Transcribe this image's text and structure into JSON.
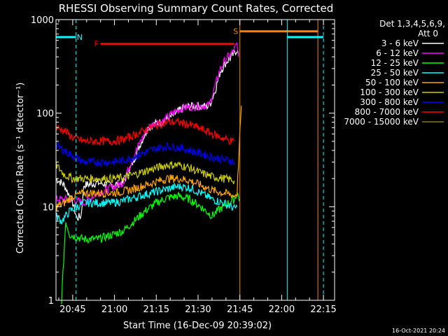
{
  "chart_data": {
    "type": "line",
    "title": "RHESSI Observing Summary Count Rates, Corrected",
    "xlabel": "Start Time (16-Dec-09 20:39:02)",
    "ylabel": "Corrected Count Rate (s⁻¹ detector⁻¹)",
    "x_unit": "minutes after 20:39:02",
    "xlim": [
      0,
      100
    ],
    "ylim": [
      1,
      1000
    ],
    "y_scale": "log",
    "x_ticks": [
      {
        "label": "20:45",
        "x": 6
      },
      {
        "label": "21:00",
        "x": 21
      },
      {
        "label": "21:15",
        "x": 36
      },
      {
        "label": "21:30",
        "x": 51
      },
      {
        "label": "21:45",
        "x": 66
      },
      {
        "label": "22:00",
        "x": 81
      },
      {
        "label": "22:15",
        "x": 96
      }
    ],
    "y_ticks": [
      {
        "label": "1",
        "y": 1
      },
      {
        "label": "10",
        "y": 10
      },
      {
        "label": "100",
        "y": 100
      },
      {
        "label": "1000",
        "y": 1000
      }
    ],
    "legend_title": "Det 1,3,4,5,6,9,",
    "legend_sub": "Att 0",
    "legend_position": "right, outside",
    "series": [
      {
        "name": "3 - 6 keV",
        "color": "#ffffff",
        "points": [
          [
            0,
            20
          ],
          [
            3,
            17
          ],
          [
            6,
            11
          ],
          [
            7.5,
            7.5
          ],
          [
            9,
            8
          ],
          [
            10,
            17
          ],
          [
            15,
            18
          ],
          [
            20,
            17
          ],
          [
            24,
            18
          ],
          [
            27,
            27
          ],
          [
            30,
            45
          ],
          [
            33,
            70
          ],
          [
            36,
            78
          ],
          [
            38,
            80
          ],
          [
            41,
            90
          ],
          [
            43,
            100
          ],
          [
            46,
            115
          ],
          [
            50,
            120
          ],
          [
            53,
            118
          ],
          [
            55,
            120
          ],
          [
            57,
            170
          ],
          [
            59,
            280
          ],
          [
            61,
            350
          ],
          [
            63,
            400
          ],
          [
            64,
            440
          ],
          [
            65,
            480
          ],
          [
            65.5,
            420
          ]
        ]
      },
      {
        "name": "6 - 12 keV",
        "color": "#ff00ff",
        "points": [
          [
            0,
            12
          ],
          [
            5,
            12
          ],
          [
            10,
            11
          ],
          [
            15,
            14
          ],
          [
            20,
            16
          ],
          [
            24,
            18
          ],
          [
            27,
            30
          ],
          [
            30,
            48
          ],
          [
            33,
            70
          ],
          [
            36,
            80
          ],
          [
            38,
            80
          ],
          [
            41,
            95
          ],
          [
            43,
            105
          ],
          [
            46,
            115
          ],
          [
            50,
            118
          ],
          [
            53,
            120
          ],
          [
            55,
            122
          ],
          [
            57,
            190
          ],
          [
            59,
            300
          ],
          [
            61,
            380
          ],
          [
            63,
            430
          ],
          [
            64,
            480
          ],
          [
            65,
            540
          ],
          [
            65.5,
            400
          ]
        ]
      },
      {
        "name": "12 - 25 keV",
        "color": "#00ff00",
        "points": [
          [
            2,
            1
          ],
          [
            3.5,
            7
          ],
          [
            5,
            5
          ],
          [
            10,
            4.5
          ],
          [
            15,
            4.5
          ],
          [
            20,
            5
          ],
          [
            24,
            5.5
          ],
          [
            28,
            7
          ],
          [
            32,
            9
          ],
          [
            36,
            11
          ],
          [
            40,
            12.5
          ],
          [
            44,
            13
          ],
          [
            48,
            12
          ],
          [
            52,
            10
          ],
          [
            56,
            8
          ],
          [
            58,
            9
          ],
          [
            60,
            10
          ],
          [
            62,
            11
          ],
          [
            64,
            12
          ],
          [
            65,
            14
          ],
          [
            66,
            12
          ]
        ]
      },
      {
        "name": "25 - 50 keV",
        "color": "#00ffff",
        "points": [
          [
            0,
            8
          ],
          [
            2,
            7
          ],
          [
            5,
            9
          ],
          [
            10,
            11
          ],
          [
            15,
            11
          ],
          [
            20,
            11
          ],
          [
            24,
            11.5
          ],
          [
            28,
            12.5
          ],
          [
            32,
            13.5
          ],
          [
            36,
            14.5
          ],
          [
            40,
            15.5
          ],
          [
            44,
            16.5
          ],
          [
            48,
            16
          ],
          [
            52,
            14
          ],
          [
            56,
            12
          ],
          [
            60,
            11
          ],
          [
            63,
            10
          ],
          [
            64,
            9.5
          ],
          [
            65,
            10
          ]
        ]
      },
      {
        "name": "50 - 100 keV",
        "color": "#ffa500",
        "points": [
          [
            0,
            10
          ],
          [
            3,
            11
          ],
          [
            6,
            13
          ],
          [
            10,
            14
          ],
          [
            15,
            14
          ],
          [
            20,
            14
          ],
          [
            24,
            14.5
          ],
          [
            28,
            15.5
          ],
          [
            32,
            17
          ],
          [
            36,
            18.5
          ],
          [
            40,
            20
          ],
          [
            44,
            20
          ],
          [
            48,
            19
          ],
          [
            52,
            17
          ],
          [
            56,
            15
          ],
          [
            60,
            14
          ],
          [
            63,
            13.5
          ],
          [
            64,
            13
          ],
          [
            65,
            14
          ],
          [
            66,
            60
          ],
          [
            66.5,
            120
          ]
        ]
      },
      {
        "name": "100 - 300 keV",
        "color": "#cccc00",
        "points": [
          [
            0,
            28
          ],
          [
            3,
            22
          ],
          [
            6,
            20
          ],
          [
            10,
            20
          ],
          [
            15,
            20
          ],
          [
            20,
            20
          ],
          [
            24,
            20.5
          ],
          [
            28,
            22
          ],
          [
            32,
            24
          ],
          [
            36,
            26
          ],
          [
            40,
            28
          ],
          [
            44,
            28
          ],
          [
            48,
            26
          ],
          [
            52,
            23
          ],
          [
            56,
            21
          ],
          [
            60,
            20
          ],
          [
            63,
            19.5
          ],
          [
            64,
            19
          ]
        ]
      },
      {
        "name": "300 - 800 keV",
        "color": "#0000ff",
        "points": [
          [
            0,
            45
          ],
          [
            3,
            40
          ],
          [
            6,
            35
          ],
          [
            10,
            30
          ],
          [
            15,
            30
          ],
          [
            20,
            30
          ],
          [
            24,
            31
          ],
          [
            28,
            34
          ],
          [
            32,
            38
          ],
          [
            36,
            42
          ],
          [
            40,
            44
          ],
          [
            44,
            43
          ],
          [
            48,
            40
          ],
          [
            52,
            37
          ],
          [
            56,
            34
          ],
          [
            60,
            32
          ],
          [
            63,
            31
          ],
          [
            64,
            30
          ]
        ]
      },
      {
        "name": "800 - 7000 keV",
        "color": "#ff0000",
        "points": [
          [
            0,
            70
          ],
          [
            3,
            65
          ],
          [
            6,
            55
          ],
          [
            10,
            50
          ],
          [
            15,
            50
          ],
          [
            20,
            50
          ],
          [
            24,
            52
          ],
          [
            28,
            58
          ],
          [
            32,
            66
          ],
          [
            36,
            74
          ],
          [
            40,
            80
          ],
          [
            44,
            80
          ],
          [
            48,
            75
          ],
          [
            52,
            68
          ],
          [
            56,
            60
          ],
          [
            60,
            54
          ],
          [
            63,
            50
          ],
          [
            64,
            50
          ]
        ]
      },
      {
        "name": "7000 - 15000 keV",
        "color": "#808000",
        "points": []
      }
    ],
    "annotations": [
      {
        "label": "N",
        "color": "#00ffff",
        "bar": [
          0,
          7.2
        ],
        "level": 650,
        "line_x": [
          7.2
        ],
        "line_style": "dashed",
        "label_x": 8.5
      },
      {
        "label": "F",
        "color": "#ff0000",
        "bar": [
          16,
          64
        ],
        "level": 550,
        "label_x": 14.5
      },
      {
        "label": "S",
        "color": "#ff8000",
        "bar": [
          66,
          94
        ],
        "level": 750,
        "line_x": [
          66,
          94
        ],
        "line_style": "solid",
        "label_x": 64.5
      },
      {
        "label": "",
        "color": "#00ffff",
        "bar": [
          83,
          96
        ],
        "level": 650,
        "line_x": [
          83
        ],
        "line_style": "solid"
      },
      {
        "label": "",
        "color": "#00ffff",
        "bar": [],
        "level": 650,
        "line_x": [
          96
        ],
        "line_style": "dashed"
      }
    ],
    "corner_text": "16-Oct-2021 20:24"
  }
}
